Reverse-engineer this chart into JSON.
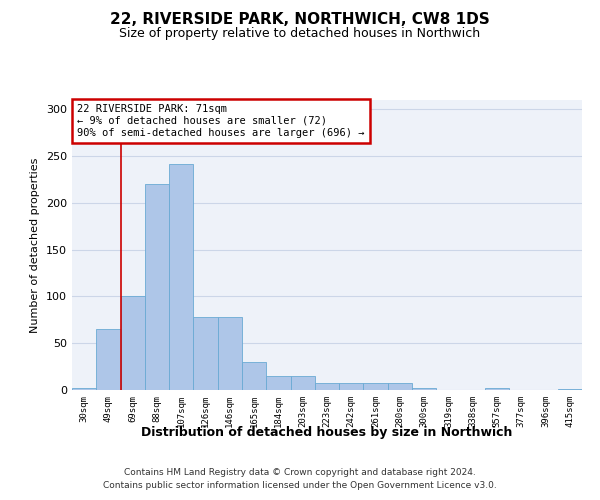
{
  "title": "22, RIVERSIDE PARK, NORTHWICH, CW8 1DS",
  "subtitle": "Size of property relative to detached houses in Northwich",
  "xlabel": "Distribution of detached houses by size in Northwich",
  "ylabel": "Number of detached properties",
  "categories": [
    "30sqm",
    "49sqm",
    "69sqm",
    "88sqm",
    "107sqm",
    "126sqm",
    "146sqm",
    "165sqm",
    "184sqm",
    "203sqm",
    "223sqm",
    "242sqm",
    "261sqm",
    "280sqm",
    "300sqm",
    "319sqm",
    "338sqm",
    "357sqm",
    "377sqm",
    "396sqm",
    "415sqm"
  ],
  "values": [
    2,
    65,
    100,
    220,
    242,
    78,
    78,
    30,
    15,
    15,
    8,
    8,
    7,
    7,
    2,
    0,
    0,
    2,
    0,
    0,
    1
  ],
  "bar_color": "#aec6e8",
  "bar_edge_color": "#6aaad4",
  "annotation_title": "22 RIVERSIDE PARK: 71sqm",
  "annotation_line1": "← 9% of detached houses are smaller (72)",
  "annotation_line2": "90% of semi-detached houses are larger (696) →",
  "annotation_box_color": "#ffffff",
  "annotation_box_edge": "#cc0000",
  "vline_color": "#cc0000",
  "vline_x": 1.5,
  "ylim": [
    0,
    310
  ],
  "yticks": [
    0,
    50,
    100,
    150,
    200,
    250,
    300
  ],
  "grid_color": "#ccd6e8",
  "bg_color": "#eef2f9",
  "footer1": "Contains HM Land Registry data © Crown copyright and database right 2024.",
  "footer2": "Contains public sector information licensed under the Open Government Licence v3.0."
}
